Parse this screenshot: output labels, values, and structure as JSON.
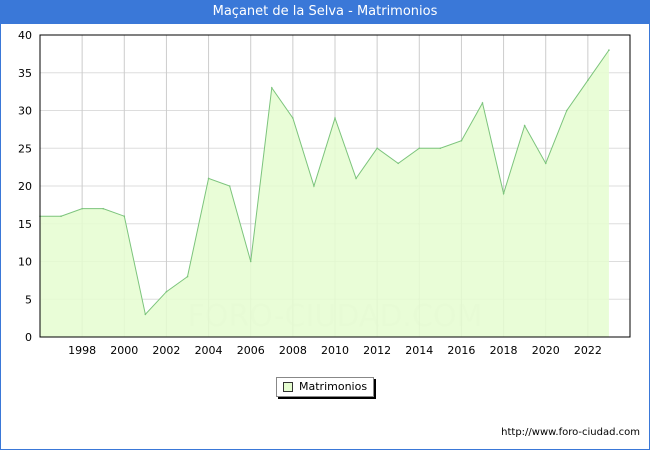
{
  "title": "Maçanet de la Selva - Matrimonios",
  "url": "http://www.foro-ciudad.com",
  "watermark": "FORO-CIUDAD.COM",
  "chart_data": {
    "type": "area",
    "title": "Maçanet de la Selva - Matrimonios",
    "x": [
      1996,
      1997,
      1998,
      1999,
      2000,
      2001,
      2002,
      2003,
      2004,
      2005,
      2006,
      2007,
      2008,
      2009,
      2010,
      2011,
      2012,
      2013,
      2014,
      2015,
      2016,
      2017,
      2018,
      2019,
      2020,
      2021,
      2022,
      2023
    ],
    "series": [
      {
        "name": "Matrimonios",
        "values": [
          16,
          16,
          17,
          17,
          16,
          3,
          6,
          8,
          21,
          20,
          10,
          33,
          29,
          20,
          29,
          21,
          25,
          23,
          25,
          25,
          26,
          31,
          19,
          28,
          23,
          30,
          34,
          38
        ]
      }
    ],
    "xticks": [
      "1998",
      "2000",
      "2002",
      "2004",
      "2006",
      "2008",
      "2010",
      "2012",
      "2014",
      "2016",
      "2018",
      "2020",
      "2022"
    ],
    "yticks": [
      "0",
      "5",
      "10",
      "15",
      "20",
      "25",
      "30",
      "35",
      "40"
    ],
    "ylim": [
      0,
      40
    ],
    "xlim": [
      1996,
      2024
    ],
    "legend": "bottom-center",
    "colors": {
      "fill": "#e5fdd0",
      "line": "#7cc47c"
    }
  }
}
